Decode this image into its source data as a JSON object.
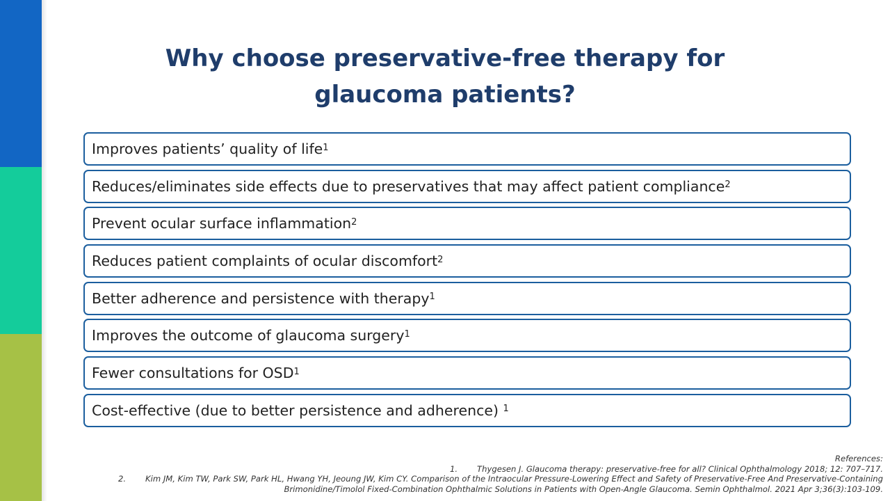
{
  "slide": {
    "title": "Why choose preservative-free therapy for glaucoma patients?",
    "colors": {
      "title": "#1f3d6b",
      "box_border": "#1b5e9e",
      "stripe_blue": "#1266c4",
      "stripe_teal": "#14cc9b",
      "stripe_green": "#a6c146"
    },
    "benefits": [
      {
        "text": "Improves patients’ quality of life",
        "ref": "1"
      },
      {
        "text": "Reduces/eliminates side effects due to preservatives that may affect patient compliance",
        "ref": "2"
      },
      {
        "text": "Prevent ocular surface inflammation",
        "ref": "2"
      },
      {
        "text": "Reduces patient complaints of ocular discomfort",
        "ref": "2"
      },
      {
        "text": "Better adherence and persistence with therapy",
        "ref": "1"
      },
      {
        "text": "Improves the outcome of glaucoma surgery",
        "ref": "1"
      },
      {
        "text": "Fewer consultations for OSD",
        "ref": "1"
      },
      {
        "text": "Cost-effective (due to better persistence and adherence) ",
        "ref": "1"
      }
    ],
    "references": {
      "heading": "References:",
      "items": [
        {
          "num": "1.",
          "text": "Thygesen J. Glaucoma therapy: preservative-free for all? Clinical Ophthalmology 2018; 12: 707–717."
        },
        {
          "num": "2.",
          "text_line1": "Kim JM, Kim TW, Park SW, Park HL, Hwang YH, Jeoung JW, Kim CY. Comparison of the Intraocular Pressure-Lowering Effect and Safety of Preservative-Free And Preservative-Containing",
          "text_line2": "Brimonidine/Timolol Fixed-Combination Ophthalmic Solutions in Patients with Open-Angle Glaucoma. Semin Ophthalmol. 2021 Apr 3;36(3):103-109."
        }
      ]
    }
  }
}
